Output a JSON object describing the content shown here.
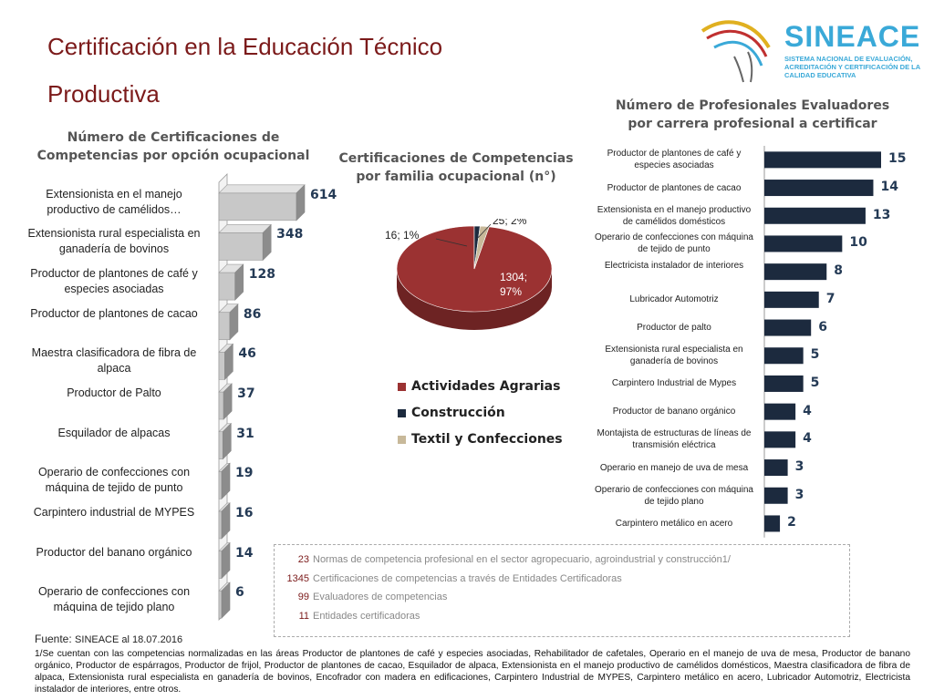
{
  "title": {
    "line1": "Certificación en la Educación Técnico",
    "line2": "Productiva"
  },
  "logo": {
    "name": "SINEACE",
    "subtitle": "SISTEMA NACIONAL DE EVALUACIÓN, ACREDITACIÓN Y CERTIFICACIÓN DE LA CALIDAD EDUCATIVA",
    "color": "#3aa9d8"
  },
  "chart_data": [
    {
      "type": "bar",
      "orientation": "horizontal",
      "title": "Número de Certificaciones de Competencias por opción ocupacional",
      "categories": [
        "Extensionista en el manejo productivo de camélidos…",
        "Extensionista rural especialista en ganadería de bovinos",
        "Productor de plantones de café y especies asociadas",
        "Productor de plantones de cacao",
        "Maestra clasificadora de fibra de alpaca",
        "Productor de Palto",
        "Esquilador de alpacas",
        "Operario de confecciones con máquina de tejido de punto",
        "Carpintero industrial de MYPES",
        "Productor del banano orgánico",
        "Operario de confecciones con máquina de tejido plano"
      ],
      "values": [
        614,
        348,
        128,
        86,
        46,
        37,
        31,
        19,
        16,
        14,
        6
      ],
      "bar_color": "#bfbfbf",
      "value_label_color": "#243a55"
    },
    {
      "type": "pie",
      "title": "Certificaciones de Competencias por familia ocupacional (n°)",
      "series": [
        {
          "name": "Actividades Agrarias",
          "value": 1304,
          "label": "1304; 97%",
          "color": "#9b3232"
        },
        {
          "name": "Construcción",
          "value": 16,
          "label": "16; 1%",
          "color": "#1c2a3e"
        },
        {
          "name": "Textil y Confecciones",
          "value": 25,
          "label": "25; 2%",
          "color": "#c8b99a"
        }
      ],
      "legend": "bottom"
    },
    {
      "type": "bar",
      "orientation": "horizontal",
      "title": "Número de Profesionales Evaluadores por carrera profesional a certificar",
      "categories": [
        "Productor de plantones de café y especies asociadas",
        "Productor de plantones de cacao",
        "Extensionista en el manejo productivo de camélidos domésticos",
        "Operario de confecciones con máquina de tejido de punto",
        "Electricista instalador de interiores",
        "Lubricador Automotriz",
        "Productor de palto",
        "Extensionista rural especialista en ganadería de bovinos",
        "Carpintero Industrial de Mypes",
        "Productor de banano orgánico",
        "Montajista de estructuras de líneas de transmisión eléctrica",
        "Operario en manejo de uva de mesa",
        "Operario de confecciones con máquina de tejido plano",
        "Carpintero metálico en acero"
      ],
      "values": [
        15,
        14,
        13,
        10,
        8,
        7,
        6,
        5,
        5,
        4,
        4,
        3,
        3,
        2
      ],
      "bar_color": "#1c2a3e",
      "value_label_color": "#243a55"
    }
  ],
  "pie_title_lines": [
    "Certificaciones de Competencias",
    "por  familia ocupacional  (n°)"
  ],
  "left_title_lines": [
    "Número de Certificaciones de",
    "Competencias por opción ocupacional"
  ],
  "right_title_lines": [
    "Número de Profesionales Evaluadores",
    "por  carrera profesional a certificar"
  ],
  "summary": [
    {
      "num": "23",
      "text": "Normas de competencia profesional en el sector agropecuario, agroindustrial y construcción1/"
    },
    {
      "num": "1345",
      "text": "Certificaciones de competencias a través de Entidades Certificadoras"
    },
    {
      "num": "99",
      "text": "Evaluadores de competencias"
    },
    {
      "num": "11",
      "text": "Entidades certificadoras"
    }
  ],
  "footer": {
    "label": "Fuente:",
    "source": "SINEACE al  18.07.2016"
  },
  "note": "1/Se cuentan con las competencias normalizadas en las áreas Productor de plantones de café y especies asociadas, Rehabilitador de cafetales, Operario en el manejo de uva de mesa, Productor de banano orgánico, Productor de espárragos, Productor de frijol, Productor de plantones de cacao, Esquilador de alpaca, Extensionista en el manejo productivo de camélidos domésticos, Maestra clasificadora de fibra de alpaca, Extensionista rural especialista en ganadería de bovinos, Encofrador con madera en edificaciones, Carpintero Industrial de MYPES, Carpintero metálico en acero, Lubricador Automotriz, Electricista instalador de interiores, entre otros."
}
